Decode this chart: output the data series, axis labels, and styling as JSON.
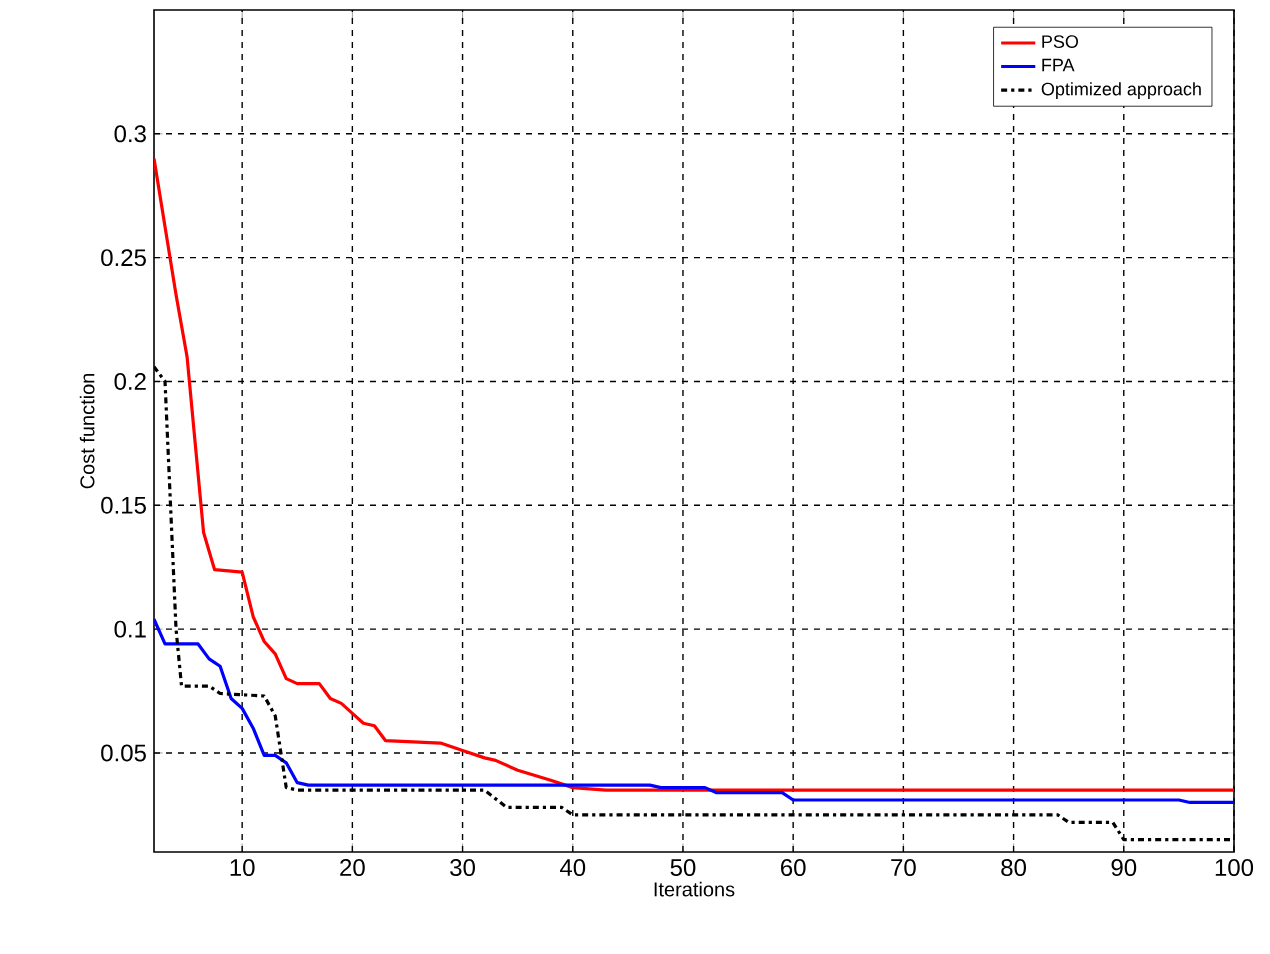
{
  "chart_data": {
    "type": "line",
    "xlabel": "Iterations",
    "ylabel": "Cost function",
    "xlim": [
      2,
      100
    ],
    "ylim": [
      0.01,
      0.35
    ],
    "xticks": [
      10,
      20,
      30,
      40,
      50,
      60,
      70,
      80,
      90,
      100
    ],
    "yticks": [
      0.05,
      0.1,
      0.15,
      0.2,
      0.25,
      0.3
    ],
    "grid": true,
    "legend": "top right",
    "series": [
      {
        "name": "PSO",
        "color": "#ff0000",
        "line_style": "solid",
        "x": [
          2,
          4,
          5,
          6.5,
          7.5,
          10,
          11,
          12,
          13,
          14,
          15,
          17,
          18,
          19,
          20,
          21,
          22,
          23,
          28,
          30,
          32,
          33,
          35,
          38,
          40,
          43,
          45,
          100
        ],
        "values": [
          0.29,
          0.235,
          0.21,
          0.139,
          0.124,
          0.123,
          0.105,
          0.095,
          0.09,
          0.08,
          0.078,
          0.078,
          0.072,
          0.07,
          0.066,
          0.062,
          0.061,
          0.055,
          0.054,
          0.051,
          0.048,
          0.047,
          0.043,
          0.039,
          0.036,
          0.035,
          0.035,
          0.035
        ]
      },
      {
        "name": "FPA",
        "color": "#0000ff",
        "line_style": "solid",
        "x": [
          2,
          3,
          6,
          7,
          8,
          9,
          10,
          11,
          12,
          13,
          14,
          15,
          16,
          31,
          40,
          47,
          48,
          52,
          53,
          59,
          60,
          95,
          96,
          100
        ],
        "values": [
          0.104,
          0.094,
          0.094,
          0.088,
          0.085,
          0.072,
          0.068,
          0.06,
          0.049,
          0.049,
          0.046,
          0.038,
          0.037,
          0.037,
          0.037,
          0.037,
          0.036,
          0.036,
          0.034,
          0.034,
          0.031,
          0.031,
          0.03,
          0.03
        ]
      },
      {
        "name": "Optimized approach",
        "color": "#000000",
        "line_style": "dashdot",
        "x": [
          2,
          3,
          4,
          4.5,
          7,
          8,
          12,
          13,
          14,
          15,
          32,
          34,
          39,
          40,
          84,
          85,
          89,
          90,
          100
        ],
        "values": [
          0.206,
          0.2,
          0.1,
          0.077,
          0.077,
          0.074,
          0.073,
          0.065,
          0.036,
          0.035,
          0.035,
          0.028,
          0.028,
          0.025,
          0.025,
          0.022,
          0.022,
          0.015,
          0.015
        ]
      }
    ]
  }
}
